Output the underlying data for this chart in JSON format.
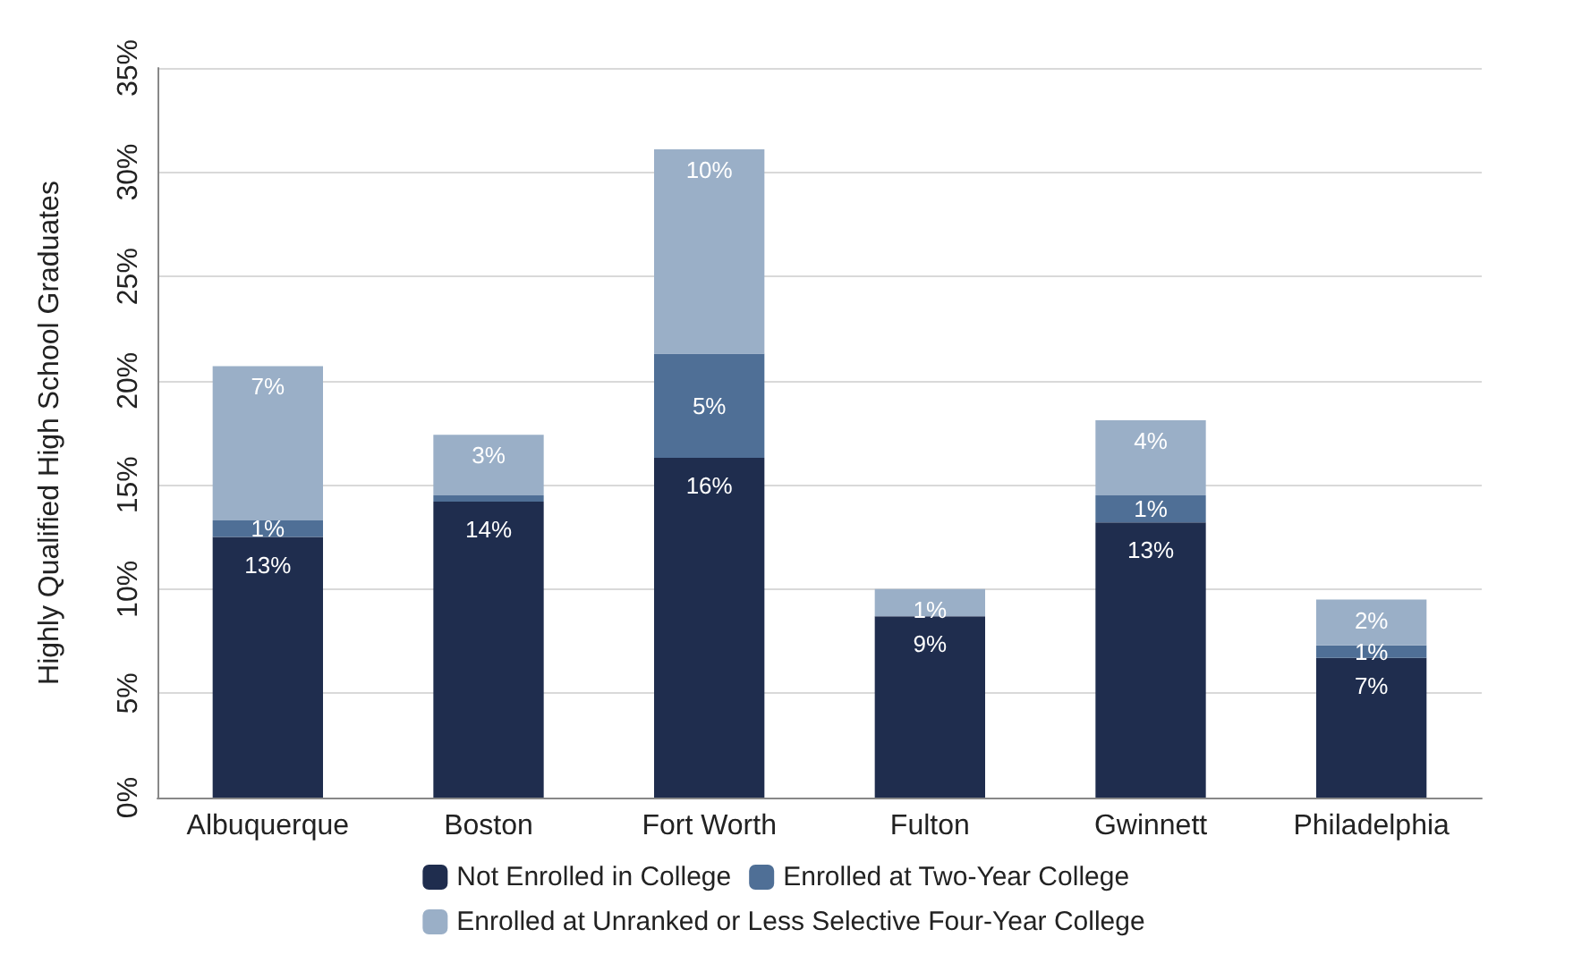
{
  "chart_data": {
    "type": "bar",
    "stacked": true,
    "ylabel": "Highly Qualified High School Graduates",
    "categories": [
      "Albuquerque",
      "Boston",
      "Fort Worth",
      "Fulton",
      "Gwinnett",
      "Philadelphia"
    ],
    "series": [
      {
        "name": "Not Enrolled in College",
        "color": "#1f2d4e",
        "values": [
          12.5,
          14.2,
          16.3,
          8.7,
          13.2,
          6.7
        ],
        "value_labels": [
          "13%",
          "14%",
          "16%",
          "9%",
          "13%",
          "7%"
        ]
      },
      {
        "name": "Enrolled at Two-Year College",
        "color": "#4f6f96",
        "values": [
          0.8,
          0.3,
          5.0,
          0,
          1.3,
          0.6
        ],
        "value_labels": [
          "1%",
          null,
          "5%",
          null,
          "1%",
          "1%"
        ]
      },
      {
        "name": "Enrolled at Unranked or Less Selective Four-Year College",
        "color": "#9aafc7",
        "values": [
          7.4,
          2.9,
          9.8,
          1.3,
          3.6,
          2.2
        ],
        "value_labels": [
          "7%",
          "3%",
          "10%",
          "1%",
          "4%",
          "2%"
        ]
      }
    ],
    "ylim": [
      0,
      35
    ],
    "yticks": [
      {
        "value": 0,
        "label": "0%"
      },
      {
        "value": 5,
        "label": "5%"
      },
      {
        "value": 10,
        "label": "10%"
      },
      {
        "value": 15,
        "label": "15%"
      },
      {
        "value": 20,
        "label": "20%"
      },
      {
        "value": 25,
        "label": "25%"
      },
      {
        "value": 30,
        "label": "30%"
      },
      {
        "value": 35,
        "label": "35%"
      }
    ],
    "grid": "y",
    "legend": "bottom"
  }
}
